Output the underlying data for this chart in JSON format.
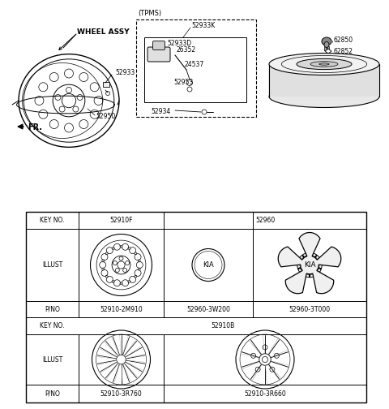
{
  "bg_color": "#ffffff",
  "line_color": "#000000",
  "labels": {
    "wheel_assy": "WHEEL ASSY",
    "tpms": "(TPMS)",
    "fr": "FR.",
    "part_52933": "52933",
    "part_52950": "52950",
    "part_52933K": "52933K",
    "part_52933D": "52933D",
    "part_26352": "26352",
    "part_24537": "24537",
    "part_52953": "52953",
    "part_52934": "52934",
    "part_62850": "62850",
    "part_62852": "62852",
    "key_no": "KEY NO.",
    "illust": "ILLUST",
    "pno": "P/NO",
    "key1": "52910F",
    "key2": "52960",
    "key3": "52910B",
    "pno1": "52910-2M910",
    "pno2": "52960-3W200",
    "pno3": "52960-3T000",
    "pno4": "52910-3R760",
    "pno5": "52910-3R660"
  }
}
